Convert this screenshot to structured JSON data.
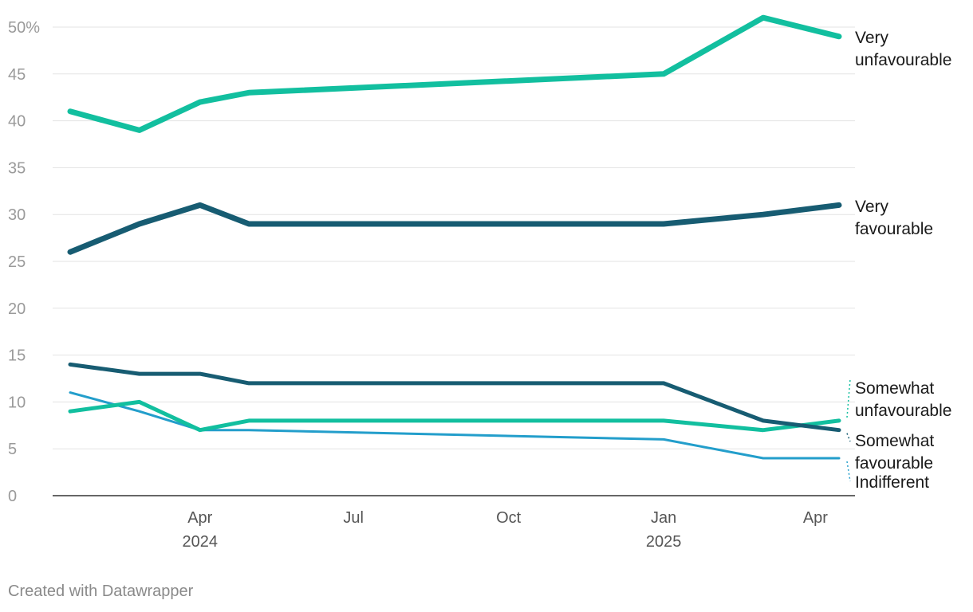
{
  "chart_data": {
    "type": "line",
    "y_unit_suffix": "%",
    "ylim": [
      0,
      50
    ],
    "y_ticks": [
      0,
      5,
      10,
      15,
      20,
      25,
      30,
      35,
      40,
      45,
      50
    ],
    "y_tick_labels": [
      "0",
      "5",
      "10",
      "15",
      "20",
      "25",
      "30",
      "35",
      "40",
      "45",
      "50%"
    ],
    "x_range": [
      "2024-01-15",
      "2025-04-15"
    ],
    "x_ticks": [
      {
        "date": "2024-04-01",
        "label": "Apr",
        "year": "2024"
      },
      {
        "date": "2024-07-01",
        "label": "Jul",
        "year": ""
      },
      {
        "date": "2024-10-01",
        "label": "Oct",
        "year": ""
      },
      {
        "date": "2025-01-01",
        "label": "Jan",
        "year": "2025"
      },
      {
        "date": "2025-04-01",
        "label": "Apr",
        "year": ""
      }
    ],
    "grid": true,
    "legend": "inline-right",
    "x": [
      "2024-01-15",
      "2024-02-25",
      "2024-04-01",
      "2024-04-30",
      "2025-01-01",
      "2025-03-01",
      "2025-04-15"
    ],
    "series": [
      {
        "name": "Very unfavourable",
        "label_lines": [
          "Very",
          "unfavourable"
        ],
        "color": "#12bf9f",
        "stroke": "thick",
        "values": [
          41,
          39,
          42,
          43,
          45,
          51,
          49
        ]
      },
      {
        "name": "Very favourable",
        "label_lines": [
          "Very",
          "favourable"
        ],
        "color": "#175c72",
        "stroke": "thick",
        "values": [
          26,
          29,
          31,
          29,
          29,
          30,
          31
        ]
      },
      {
        "name": "Somewhat unfavourable",
        "label_lines": [
          "Somewhat",
          "unfavourable"
        ],
        "color": "#12bf9f",
        "stroke": "medium",
        "values": [
          9,
          10,
          7,
          8,
          8,
          7,
          8
        ]
      },
      {
        "name": "Somewhat favourable",
        "label_lines": [
          "Somewhat",
          "favourable"
        ],
        "color": "#175c72",
        "stroke": "medium",
        "values": [
          14,
          13,
          13,
          12,
          12,
          8,
          7
        ]
      },
      {
        "name": "Indifferent",
        "label_lines": [
          "Indifferent"
        ],
        "color": "#239ecb",
        "stroke": "thin",
        "values": [
          11,
          9,
          7,
          7,
          6,
          4,
          4
        ]
      }
    ]
  },
  "footer": "Created with Datawrapper"
}
